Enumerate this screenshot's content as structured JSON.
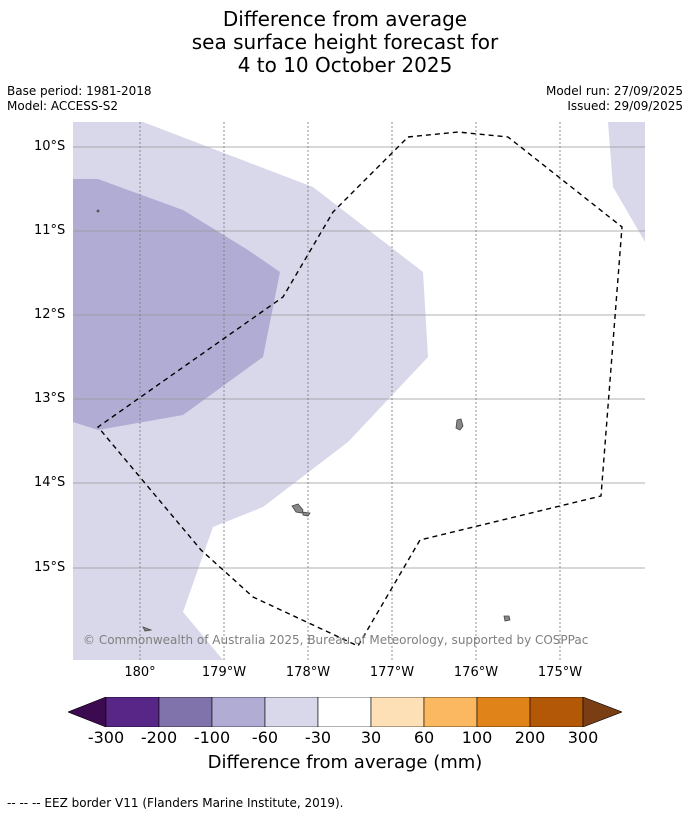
{
  "title": {
    "line1": "Difference from average",
    "line2": "sea surface height forecast for",
    "line3": "4 to 10 October 2025"
  },
  "meta": {
    "base_period": "Base period: 1981-2018",
    "model": "Model: ACCESS-S2",
    "model_run": "Model run: 27/09/2025",
    "issued": "Issued: 29/09/2025"
  },
  "map": {
    "latitude_labels": [
      "10°S",
      "11°S",
      "12°S",
      "13°S",
      "14°S",
      "15°S"
    ],
    "longitude_labels": [
      "180°",
      "179°W",
      "178°W",
      "177°W",
      "176°W",
      "175°W"
    ],
    "copyright": "© Commonwealth of Australia 2025, Bureau of Meteorology, supported by COSPPac",
    "colors": {
      "level_-100_-60": "#b1acd3",
      "level_-60_-30": "#d8d8ea",
      "land": "#888888",
      "eez_border": "#000000"
    }
  },
  "colorbar": {
    "label": "Difference from average (mm)",
    "ticks": [
      "-300",
      "-200",
      "-100",
      "-60",
      "-30",
      "30",
      "60",
      "100",
      "200",
      "300"
    ],
    "under_color": "#3b0a51",
    "over_color": "#7b3e14",
    "colors": [
      "#582686",
      "#8073ac",
      "#b1acd3",
      "#d8d8ea",
      "#ffffff",
      "#fde0b6",
      "#fbb860",
      "#e08319",
      "#b35807"
    ]
  },
  "footer": {
    "legend": "--  --  -- EEZ border V11 (Flanders Marine Institute, 2019)."
  }
}
